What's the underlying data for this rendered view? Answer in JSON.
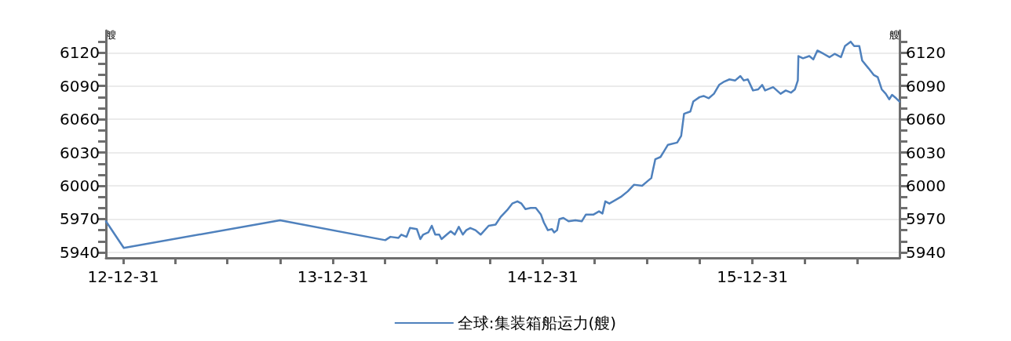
{
  "chart_data": {
    "type": "line",
    "ylabel": "艘",
    "y2label": "艘",
    "x": [
      "2012-12-01",
      "2013-01-01",
      "2013-09-30",
      "2014-04-01",
      "2014-04-10",
      "2014-04-24",
      "2014-04-29",
      "2014-05-08",
      "2014-05-14",
      "2014-05-26",
      "2014-06-01",
      "2014-06-06",
      "2014-06-15",
      "2014-06-21",
      "2014-06-27",
      "2014-07-04",
      "2014-07-08",
      "2014-07-17",
      "2014-07-24",
      "2014-07-31",
      "2014-08-07",
      "2014-08-14",
      "2014-08-20",
      "2014-08-27",
      "2014-09-05",
      "2014-09-14",
      "2014-09-28",
      "2014-10-10",
      "2014-10-19",
      "2014-10-30",
      "2014-11-08",
      "2014-11-17",
      "2014-11-24",
      "2014-12-01",
      "2014-12-10",
      "2014-12-19",
      "2014-12-28",
      "2015-01-02",
      "2015-01-09",
      "2015-01-16",
      "2015-01-20",
      "2015-01-25",
      "2015-01-29",
      "2015-02-05",
      "2015-02-14",
      "2015-02-26",
      "2015-03-09",
      "2015-03-16",
      "2015-03-29",
      "2015-04-08",
      "2015-04-14",
      "2015-04-19",
      "2015-04-26",
      "2015-05-16",
      "2015-05-28",
      "2015-06-08",
      "2015-06-22",
      "2015-07-01",
      "2015-07-08",
      "2015-07-10",
      "2015-07-15",
      "2015-07-24",
      "2015-07-30",
      "2015-08-06",
      "2015-08-22",
      "2015-08-29",
      "2015-09-03",
      "2015-09-14",
      "2015-09-19",
      "2015-09-30",
      "2015-10-07",
      "2015-10-16",
      "2015-10-25",
      "2015-11-03",
      "2015-11-12",
      "2015-11-21",
      "2015-12-01",
      "2015-12-10",
      "2015-12-16",
      "2015-12-23",
      "2016-01-01",
      "2016-01-10",
      "2016-01-17",
      "2016-01-22",
      "2016-02-05",
      "2016-02-18",
      "2016-02-27",
      "2016-03-07",
      "2016-03-14",
      "2016-03-19",
      "2016-03-20",
      "2016-03-28",
      "2016-04-08",
      "2016-04-15",
      "2016-04-22",
      "2016-05-03",
      "2016-05-13",
      "2016-05-22",
      "2016-06-02",
      "2016-06-09",
      "2016-06-19",
      "2016-06-25",
      "2016-07-04",
      "2016-07-09",
      "2016-07-20",
      "2016-07-29",
      "2016-08-05",
      "2016-08-12",
      "2016-08-19",
      "2016-08-25",
      "2016-08-30",
      "2016-09-06",
      "2016-09-12"
    ],
    "series": [
      {
        "name": "全球:集装箱船运力(艘)",
        "color": "#4f81bd",
        "values": [
          5968,
          5944,
          5969,
          5951,
          5954,
          5953,
          5956,
          5954,
          5962,
          5961,
          5952,
          5956,
          5958,
          5964,
          5956,
          5956,
          5952,
          5956,
          5959,
          5956,
          5963,
          5956,
          5960,
          5962,
          5960,
          5956,
          5964,
          5965,
          5972,
          5978,
          5984,
          5986,
          5984,
          5979,
          5980,
          5980,
          5974,
          5967,
          5960,
          5961,
          5958,
          5960,
          5970,
          5971,
          5968,
          5969,
          5968,
          5974,
          5974,
          5977,
          5975,
          5986,
          5984,
          5990,
          5995,
          6001,
          6000,
          6004,
          6007,
          6012,
          6024,
          6026,
          6031,
          6037,
          6039,
          6045,
          6065,
          6067,
          6076,
          6080,
          6081,
          6079,
          6083,
          6091,
          6094,
          6096,
          6095,
          6099,
          6095,
          6096,
          6086,
          6087,
          6091,
          6086,
          6089,
          6083,
          6086,
          6084,
          6087,
          6095,
          6117,
          6115,
          6117,
          6114,
          6122,
          6119,
          6116,
          6119,
          6116,
          6126,
          6130,
          6126,
          6126,
          6113,
          6106,
          6100,
          6098,
          6087,
          6083,
          6078,
          6082,
          6079,
          6076
        ]
      }
    ],
    "xlim": [
      "2012-12-01",
      "2016-09-12"
    ],
    "xticks": [
      {
        "value": "2012-12-31",
        "label": "12-12-31"
      },
      {
        "value": "2013-03-31",
        "label": null
      },
      {
        "value": "2013-06-30",
        "label": null
      },
      {
        "value": "2013-09-30",
        "label": null
      },
      {
        "value": "2013-12-31",
        "label": "13-12-31"
      },
      {
        "value": "2014-03-31",
        "label": null
      },
      {
        "value": "2014-06-30",
        "label": null
      },
      {
        "value": "2014-09-30",
        "label": null
      },
      {
        "value": "2014-12-31",
        "label": "14-12-31"
      },
      {
        "value": "2015-03-31",
        "label": null
      },
      {
        "value": "2015-06-30",
        "label": null
      },
      {
        "value": "2015-09-30",
        "label": null
      },
      {
        "value": "2015-12-31",
        "label": "15-12-31"
      },
      {
        "value": "2016-03-31",
        "label": null
      },
      {
        "value": "2016-06-30",
        "label": null
      }
    ],
    "ylim": [
      5935,
      6140
    ],
    "yticks": [
      5940,
      {
        "value": 5950,
        "label": null
      },
      {
        "value": 5960,
        "label": null
      },
      5970,
      {
        "value": 5980,
        "label": null
      },
      {
        "value": 5990,
        "label": null
      },
      6000,
      {
        "value": 6010,
        "label": null
      },
      {
        "value": 6020,
        "label": null
      },
      6030,
      {
        "value": 6040,
        "label": null
      },
      {
        "value": 6050,
        "label": null
      },
      6060,
      {
        "value": 6070,
        "label": null
      },
      {
        "value": 6080,
        "label": null
      },
      6090,
      {
        "value": 6100,
        "label": null
      },
      {
        "value": 6110,
        "label": null
      },
      6120,
      {
        "value": 6130,
        "label": null
      }
    ],
    "y2lim": [
      5935,
      6140
    ],
    "y2ticks": [
      5940,
      {
        "value": 5950,
        "label": null
      },
      {
        "value": 5960,
        "label": null
      },
      5970,
      {
        "value": 5980,
        "label": null
      },
      {
        "value": 5990,
        "label": null
      },
      6000,
      {
        "value": 6010,
        "label": null
      },
      {
        "value": 6020,
        "label": null
      },
      6030,
      {
        "value": 6040,
        "label": null
      },
      {
        "value": 6050,
        "label": null
      },
      6060,
      {
        "value": 6070,
        "label": null
      },
      {
        "value": 6080,
        "label": null
      },
      6090,
      {
        "value": 6100,
        "label": null
      },
      {
        "value": 6110,
        "label": null
      },
      6120,
      {
        "value": 6130,
        "label": null
      }
    ],
    "grid": "y",
    "legend": "bottom",
    "marker": "none",
    "line_style": "solid"
  }
}
